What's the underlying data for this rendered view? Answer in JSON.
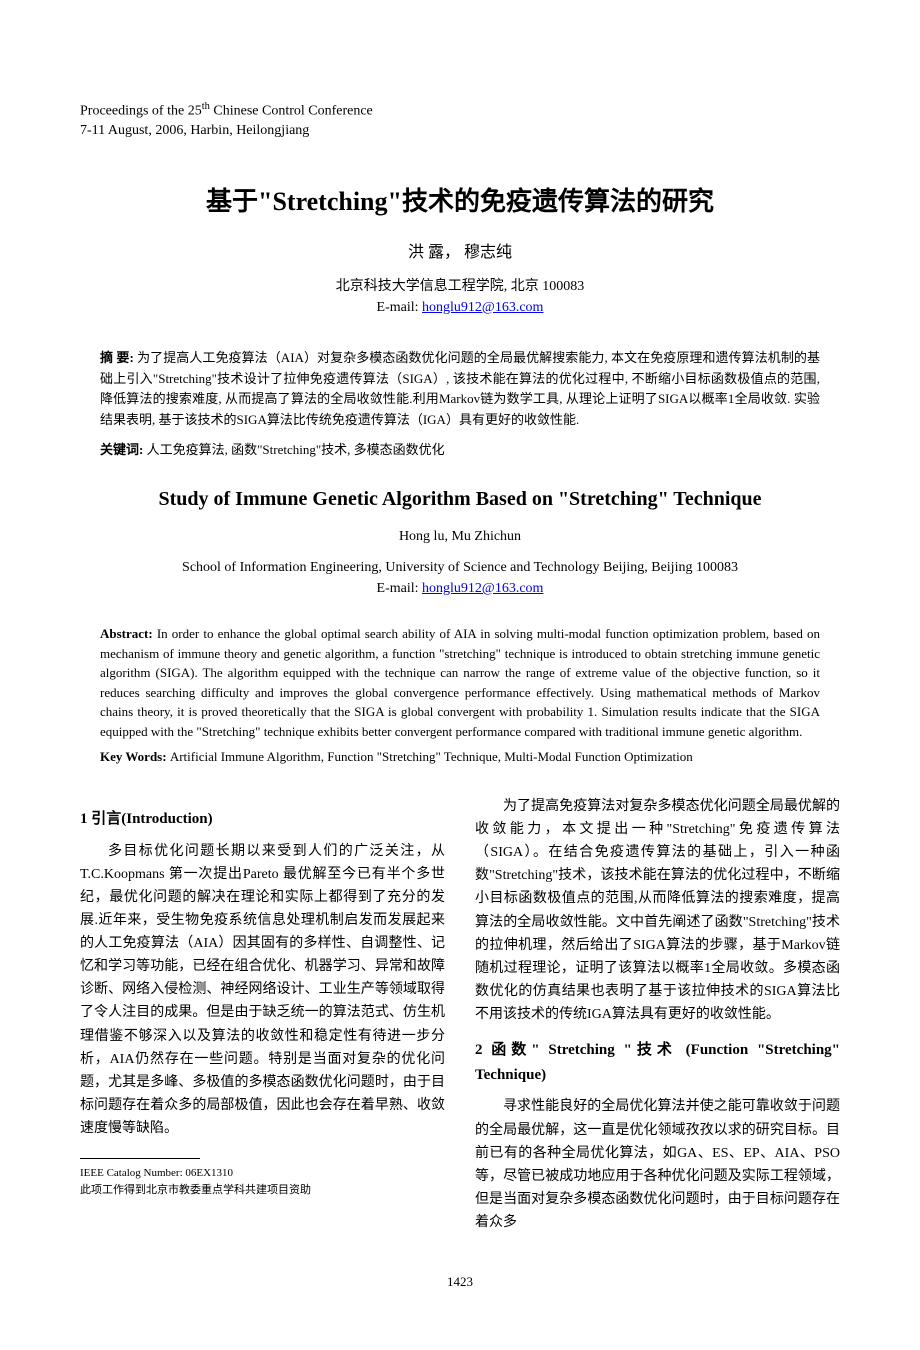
{
  "proceedings": {
    "line1_pre": "Proceedings of the 25",
    "line1_sup": "th",
    "line1_post": " Chinese Control Conference",
    "line2": "7-11 August, 2006, Harbin, Heilongjiang"
  },
  "title_cn": "基于\"Stretching\"技术的免疫遗传算法的研究",
  "authors_cn": "洪 露， 穆志纯",
  "affiliation_cn": "北京科技大学信息工程学院, 北京  100083",
  "email_label": "E-mail: ",
  "email": "honglu912@163.com",
  "abstract_cn": {
    "label": "摘 要: ",
    "text": "为了提高人工免疫算法（AIA）对复杂多模态函数优化问题的全局最优解搜索能力, 本文在免疫原理和遗传算法机制的基础上引入\"Stretching\"技术设计了拉伸免疫遗传算法（SIGA）, 该技术能在算法的优化过程中, 不断缩小目标函数极值点的范围,降低算法的搜索难度, 从而提高了算法的全局收敛性能.利用Markov链为数学工具, 从理论上证明了SIGA以概率1全局收敛. 实验结果表明, 基于该技术的SIGA算法比传统免疫遗传算法（IGA）具有更好的收敛性能."
  },
  "keywords_cn": {
    "label": "关键词: ",
    "text": "人工免疫算法, 函数\"Stretching\"技术, 多模态函数优化"
  },
  "title_en": "Study of Immune Genetic Algorithm Based on \"Stretching\" Technique",
  "authors_en": "Hong lu,   Mu Zhichun",
  "affiliation_en": "School of Information Engineering, University of Science and Technology Beijing, Beijing 100083",
  "abstract_en": {
    "label": "Abstract: ",
    "text": "In order to enhance the global optimal search ability of AIA in solving multi-modal function optimization problem, based on mechanism of immune theory and genetic algorithm, a function \"stretching\" technique is introduced to obtain stretching immune genetic algorithm (SIGA). The algorithm equipped with the technique can narrow the range of extreme value of the objective function, so it reduces searching difficulty and improves the global convergence performance effectively. Using mathematical methods of Markov chains theory, it is proved theoretically that the SIGA is global convergent with probability 1. Simulation results indicate that the SIGA equipped with the \"Stretching\" technique exhibits better convergent performance compared with traditional immune genetic algorithm."
  },
  "keywords_en": {
    "label": "Key Words: ",
    "text": "Artificial Immune Algorithm, Function \"Stretching\" Technique, Multi-Modal Function Optimization"
  },
  "section1": {
    "title": "1  引言(Introduction)",
    "para1": "多目标优化问题长期以来受到人们的广泛关注，从T.C.Koopmans 第一次提出Pareto 最优解至今已有半个多世纪，最优化问题的解决在理论和实际上都得到了充分的发展.近年来，受生物免疫系统信息处理机制启发而发展起来的人工免疫算法（AIA）因其固有的多样性、自调整性、记忆和学习等功能，已经在组合优化、机器学习、异常和故障诊断、网络入侵检测、神经网络设计、工业生产等领域取得了令人注目的成果。但是由于缺乏统一的算法范式、仿生机理借鉴不够深入以及算法的收敛性和稳定性有待进一步分析，AIA仍然存在一些问题。特别是当面对复杂的优化问题，尤其是多峰、多极值的多模态函数优化问题时，由于目标问题存在着众多的局部极值，因此也会存在着早熟、收敛速度慢等缺陷。",
    "para2": "为了提高免疫算法对复杂多模态优化问题全局最优解的收敛能力，本文提出一种\"Stretching\"免疫遗传算法（SIGA）。在结合免疫遗传算法的基础上，引入一种函数\"Stretching\"技术，该技术能在算法的优化过程中，不断缩小目标函数极值点的范围,从而降低算法的搜索难度，提高算法的全局收敛性能。文中首先阐述了函数\"Stretching\"技术的拉伸机理，然后给出了SIGA算法的步骤，基于Markov链随机过程理论，证明了该算法以概率1全局收敛。多模态函数优化的仿真结果也表明了基于该拉伸技术的SIGA算法比不用该技术的传统IGA算法具有更好的收敛性能。"
  },
  "section2": {
    "title": "2 函数\" Stretching \"技术 (Function \"Stretching\" Technique)",
    "para1": "寻求性能良好的全局优化算法并使之能可靠收敛于问题的全局最优解，这一直是优化领域孜孜以求的研究目标。目前已有的各种全局优化算法，如GA、ES、EP、AIA、PSO等，尽管已被成功地应用于各种优化问题及实际工程领域，但是当面对复杂多模态函数优化问题时，由于目标问题存在着众多"
  },
  "footnotes": {
    "line1": "IEEE Catalog Number: 06EX1310",
    "line2": "此项工作得到北京市教委重点学科共建项目资助"
  },
  "page_number": "1423",
  "colors": {
    "text": "#000000",
    "background": "#ffffff",
    "link": "#0000ee"
  }
}
